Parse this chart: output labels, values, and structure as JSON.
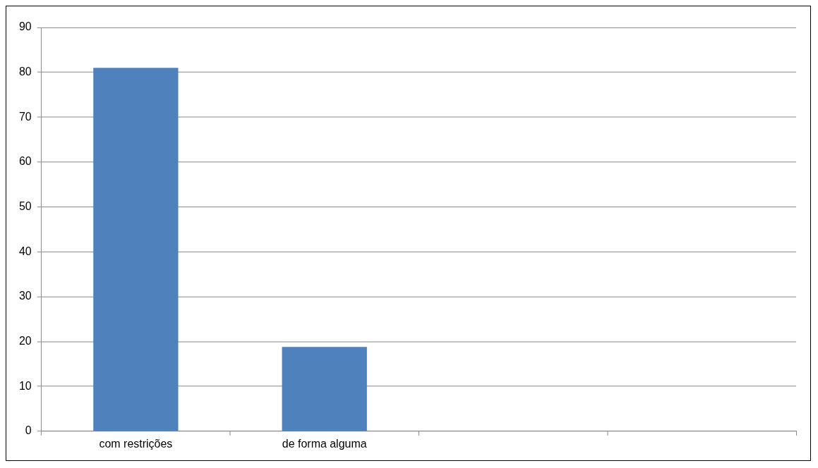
{
  "chart_data": {
    "type": "bar",
    "categories": [
      "com restrições",
      "de forma alguma",
      null,
      null
    ],
    "values": [
      81,
      18.8,
      null,
      null
    ],
    "color": "#4f81bd",
    "ylim": [
      0,
      90
    ],
    "yticks": [
      0,
      10,
      20,
      30,
      40,
      50,
      60,
      70,
      80,
      90
    ],
    "grid": "y",
    "legend": false
  }
}
